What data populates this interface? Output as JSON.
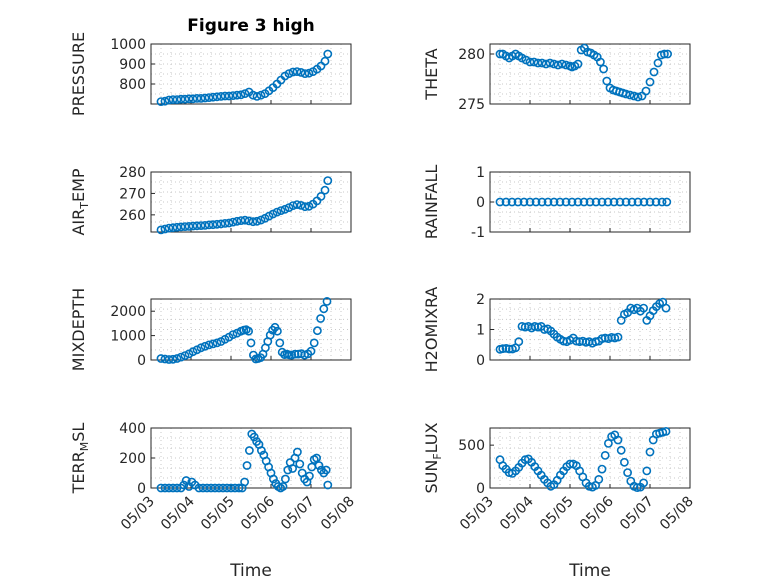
{
  "figure": {
    "title": "Figure 3 high",
    "marker_color": "#0072BD"
  },
  "chart_data": [
    {
      "type": "scatter",
      "ylabel": "PRESSURE",
      "xlabel": "",
      "title": "Figure 3 high",
      "ylim": [
        700,
        1000
      ],
      "yticks": [
        800,
        900,
        1000
      ],
      "xlim": [
        "05/03",
        "05/08"
      ],
      "grid": true,
      "x": [
        0.25,
        0.35,
        0.45,
        0.55,
        0.65,
        0.75,
        0.85,
        0.95,
        1.05,
        1.15,
        1.25,
        1.35,
        1.45,
        1.55,
        1.65,
        1.75,
        1.85,
        1.95,
        2.05,
        2.15,
        2.25,
        2.35,
        2.45,
        2.55,
        2.65,
        2.75,
        2.85,
        2.95,
        3.05,
        3.15,
        3.25,
        3.35,
        3.45,
        3.55,
        3.65,
        3.75,
        3.85,
        3.95,
        4.05,
        4.15,
        4.25,
        4.35,
        4.42
      ],
      "y": [
        712,
        714,
        720,
        722,
        722,
        724,
        724,
        726,
        726,
        728,
        728,
        730,
        732,
        734,
        736,
        738,
        740,
        740,
        742,
        744,
        746,
        752,
        760,
        744,
        738,
        744,
        752,
        766,
        782,
        800,
        820,
        840,
        852,
        860,
        862,
        858,
        852,
        854,
        862,
        874,
        890,
        914,
        950
      ]
    },
    {
      "type": "scatter",
      "ylabel": "THETA",
      "xlabel": "",
      "ylim": [
        275,
        281
      ],
      "yticks": [
        275,
        280
      ],
      "xlim": [
        "05/03",
        "05/08"
      ],
      "grid": true,
      "x": [
        0.25,
        0.32,
        0.4,
        0.48,
        0.56,
        0.64,
        0.72,
        0.8,
        0.9,
        1.0,
        1.1,
        1.2,
        1.3,
        1.4,
        1.5,
        1.6,
        1.7,
        1.8,
        1.9,
        2.0,
        2.05,
        2.12,
        2.2,
        2.28,
        2.36,
        2.44,
        2.52,
        2.6,
        2.68,
        2.76,
        2.84,
        2.92,
        3.0,
        3.08,
        3.16,
        3.24,
        3.32,
        3.4,
        3.5,
        3.6,
        3.7,
        3.8,
        3.9,
        4.0,
        4.1,
        4.2,
        4.28,
        4.36,
        4.44
      ],
      "y": [
        280,
        280,
        279.8,
        279.6,
        279.8,
        280,
        279.8,
        279.6,
        279.4,
        279.2,
        279.2,
        279.1,
        279.1,
        279,
        279.1,
        279,
        278.9,
        279,
        278.9,
        278.8,
        278.7,
        278.8,
        279,
        280.4,
        280.6,
        280.2,
        280.1,
        279.9,
        279.7,
        279.2,
        278.5,
        277.3,
        276.6,
        276.4,
        276.3,
        276.2,
        276.1,
        276,
        275.9,
        275.8,
        275.7,
        275.8,
        276.3,
        277.2,
        278.2,
        279.1,
        279.9,
        280,
        280
      ]
    },
    {
      "type": "scatter",
      "ylabel": "AIR_TEMP",
      "xlabel": "",
      "ylim": [
        252,
        280
      ],
      "yticks": [
        260,
        270,
        280
      ],
      "xlim": [
        "05/03",
        "05/08"
      ],
      "grid": true,
      "x": [
        0.25,
        0.35,
        0.45,
        0.55,
        0.65,
        0.75,
        0.85,
        0.95,
        1.05,
        1.15,
        1.25,
        1.35,
        1.45,
        1.55,
        1.65,
        1.75,
        1.85,
        1.95,
        2.05,
        2.15,
        2.25,
        2.35,
        2.45,
        2.55,
        2.65,
        2.75,
        2.85,
        2.95,
        3.05,
        3.15,
        3.25,
        3.35,
        3.45,
        3.55,
        3.65,
        3.75,
        3.85,
        3.95,
        4.05,
        4.15,
        4.25,
        4.35,
        4.42
      ],
      "y": [
        253,
        253.4,
        253.8,
        254,
        254.2,
        254.4,
        254.5,
        254.6,
        254.8,
        254.9,
        255,
        255.1,
        255.3,
        255.4,
        255.6,
        255.8,
        256,
        256.2,
        256.6,
        257,
        257.3,
        257.5,
        257.2,
        256.8,
        257,
        257.6,
        258.4,
        259.4,
        260.4,
        261.3,
        262,
        262.6,
        263.4,
        264.3,
        264.8,
        264.4,
        263.8,
        264,
        265,
        266.5,
        268.6,
        271.5,
        276
      ]
    },
    {
      "type": "scatter",
      "ylabel": "RAINFALL",
      "xlabel": "",
      "ylim": [
        -1,
        1
      ],
      "yticks": [
        -1,
        0,
        1
      ],
      "xlim": [
        "05/03",
        "05/08"
      ],
      "grid": true,
      "x": [
        0.25,
        0.4,
        0.55,
        0.7,
        0.85,
        1.0,
        1.15,
        1.3,
        1.45,
        1.6,
        1.75,
        1.9,
        2.05,
        2.2,
        2.35,
        2.5,
        2.65,
        2.8,
        2.95,
        3.1,
        3.25,
        3.4,
        3.55,
        3.7,
        3.85,
        4.0,
        4.15,
        4.3,
        4.42
      ],
      "y": [
        0,
        0,
        0,
        0,
        0,
        0,
        0,
        0,
        0,
        0,
        0,
        0,
        0,
        0,
        0,
        0,
        0,
        0,
        0,
        0,
        0,
        0,
        0,
        0,
        0,
        0,
        0,
        0,
        0
      ]
    },
    {
      "type": "scatter",
      "ylabel": "MIXDEPTH",
      "xlabel": "",
      "ylim": [
        0,
        2500
      ],
      "yticks": [
        0,
        1000,
        2000
      ],
      "xlim": [
        "05/03",
        "05/08"
      ],
      "grid": true,
      "x": [
        0.25,
        0.35,
        0.45,
        0.55,
        0.65,
        0.75,
        0.85,
        0.95,
        1.05,
        1.15,
        1.25,
        1.35,
        1.45,
        1.55,
        1.65,
        1.75,
        1.85,
        1.95,
        2.05,
        2.15,
        2.25,
        2.32,
        2.38,
        2.44,
        2.5,
        2.56,
        2.62,
        2.68,
        2.74,
        2.8,
        2.86,
        2.92,
        2.98,
        3.04,
        3.1,
        3.16,
        3.22,
        3.28,
        3.34,
        3.4,
        3.46,
        3.52,
        3.6,
        3.68,
        3.76,
        3.84,
        3.92,
        4.0,
        4.08,
        4.16,
        4.24,
        4.32,
        4.4
      ],
      "y": [
        60,
        40,
        20,
        30,
        60,
        120,
        180,
        250,
        340,
        420,
        500,
        560,
        620,
        660,
        700,
        760,
        850,
        940,
        1040,
        1100,
        1180,
        1220,
        1240,
        1180,
        700,
        200,
        40,
        60,
        100,
        240,
        500,
        760,
        1020,
        1220,
        1340,
        1180,
        700,
        320,
        220,
        240,
        210,
        200,
        240,
        240,
        260,
        200,
        250,
        360,
        700,
        1200,
        1700,
        2100,
        2400
      ]
    },
    {
      "type": "scatter",
      "ylabel": "H2OMIXRA",
      "xlabel": "",
      "ylim": [
        0,
        2
      ],
      "yticks": [
        0,
        1,
        2
      ],
      "xlim": [
        "05/03",
        "05/08"
      ],
      "grid": true,
      "x": [
        0.25,
        0.32,
        0.4,
        0.48,
        0.56,
        0.64,
        0.72,
        0.8,
        0.88,
        0.96,
        1.04,
        1.12,
        1.2,
        1.28,
        1.36,
        1.44,
        1.52,
        1.6,
        1.68,
        1.76,
        1.84,
        1.92,
        2.0,
        2.08,
        2.16,
        2.24,
        2.32,
        2.4,
        2.48,
        2.56,
        2.64,
        2.72,
        2.8,
        2.88,
        2.96,
        3.04,
        3.12,
        3.2,
        3.28,
        3.36,
        3.44,
        3.52,
        3.6,
        3.68,
        3.76,
        3.84,
        3.92,
        4.0,
        4.08,
        4.16,
        4.24,
        4.32,
        4.4
      ],
      "y": [
        0.35,
        0.37,
        0.38,
        0.36,
        0.36,
        0.4,
        0.6,
        1.1,
        1.08,
        1.1,
        1.05,
        1.1,
        1.08,
        1.1,
        1.0,
        1.02,
        0.95,
        0.85,
        0.75,
        0.68,
        0.62,
        0.6,
        0.65,
        0.72,
        0.62,
        0.6,
        0.62,
        0.58,
        0.6,
        0.55,
        0.6,
        0.62,
        0.7,
        0.72,
        0.7,
        0.74,
        0.72,
        0.75,
        1.3,
        1.5,
        1.55,
        1.7,
        1.65,
        1.7,
        1.6,
        1.7,
        1.3,
        1.45,
        1.62,
        1.75,
        1.85,
        1.9,
        1.7
      ]
    },
    {
      "type": "scatter",
      "ylabel": "TERR_MSL",
      "xlabel": "Time",
      "ylim": [
        0,
        400
      ],
      "yticks": [
        0,
        200,
        400
      ],
      "xlim": [
        "05/03",
        "05/08"
      ],
      "xticks": [
        "05/03",
        "05/04",
        "05/05",
        "05/06",
        "05/07",
        "05/08"
      ],
      "grid": true,
      "x": [
        0.25,
        0.35,
        0.45,
        0.55,
        0.65,
        0.75,
        0.82,
        0.88,
        0.95,
        1.02,
        1.1,
        1.2,
        1.3,
        1.4,
        1.5,
        1.6,
        1.7,
        1.8,
        1.9,
        2.0,
        2.1,
        2.2,
        2.28,
        2.34,
        2.4,
        2.46,
        2.52,
        2.58,
        2.64,
        2.7,
        2.76,
        2.82,
        2.88,
        2.94,
        3.0,
        3.06,
        3.12,
        3.18,
        3.24,
        3.3,
        3.36,
        3.42,
        3.48,
        3.54,
        3.6,
        3.66,
        3.72,
        3.78,
        3.84,
        3.9,
        3.96,
        4.02,
        4.08,
        4.14,
        4.2,
        4.26,
        4.32,
        4.38,
        4.42
      ],
      "y": [
        0,
        0,
        0,
        0,
        0,
        0,
        20,
        50,
        10,
        40,
        20,
        0,
        0,
        0,
        0,
        0,
        0,
        0,
        0,
        0,
        0,
        0,
        0,
        40,
        150,
        250,
        360,
        340,
        310,
        290,
        250,
        220,
        180,
        140,
        100,
        60,
        30,
        10,
        0,
        10,
        60,
        120,
        170,
        130,
        200,
        240,
        160,
        100,
        60,
        40,
        80,
        140,
        190,
        200,
        150,
        120,
        100,
        120,
        20
      ]
    },
    {
      "type": "scatter",
      "ylabel": "SUN_FLUX",
      "xlabel": "Time",
      "ylim": [
        0,
        700
      ],
      "yticks": [
        0,
        500
      ],
      "xlim": [
        "05/03",
        "05/08"
      ],
      "xticks": [
        "05/03",
        "05/04",
        "05/05",
        "05/06",
        "05/07",
        "05/08"
      ],
      "grid": true,
      "x": [
        0.25,
        0.32,
        0.4,
        0.48,
        0.56,
        0.64,
        0.72,
        0.8,
        0.88,
        0.96,
        1.04,
        1.12,
        1.2,
        1.28,
        1.36,
        1.44,
        1.52,
        1.6,
        1.68,
        1.76,
        1.84,
        1.92,
        2.0,
        2.08,
        2.16,
        2.24,
        2.32,
        2.4,
        2.48,
        2.56,
        2.64,
        2.72,
        2.8,
        2.88,
        2.96,
        3.04,
        3.12,
        3.2,
        3.28,
        3.36,
        3.44,
        3.52,
        3.6,
        3.68,
        3.76,
        3.84,
        3.92,
        4.0,
        4.08,
        4.16,
        4.24,
        4.32,
        4.4
      ],
      "y": [
        330,
        260,
        220,
        180,
        170,
        200,
        240,
        290,
        330,
        340,
        300,
        250,
        200,
        150,
        100,
        60,
        20,
        40,
        90,
        150,
        200,
        250,
        280,
        280,
        260,
        200,
        130,
        60,
        20,
        10,
        30,
        100,
        220,
        380,
        520,
        600,
        620,
        560,
        440,
        300,
        180,
        80,
        20,
        5,
        10,
        60,
        200,
        420,
        560,
        630,
        640,
        650,
        660
      ]
    }
  ]
}
